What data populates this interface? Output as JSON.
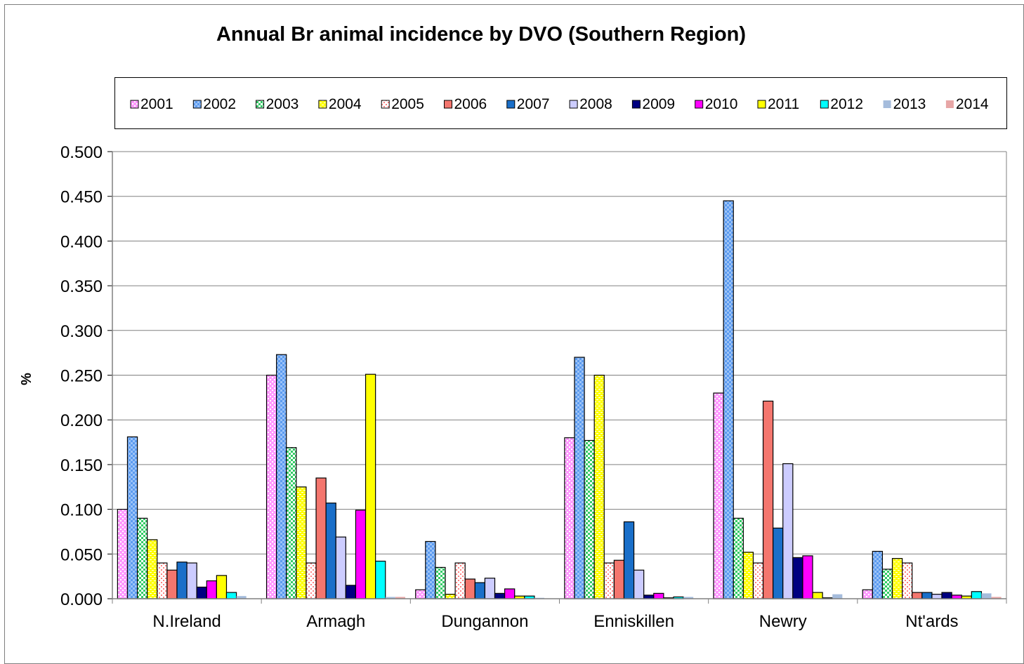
{
  "chart_data": {
    "type": "bar",
    "title": "Annual Br animal incidence by DVO (Southern Region)",
    "ylabel": "%",
    "xlabel": "",
    "ylim": [
      0,
      0.5
    ],
    "yticks": [
      "0.000",
      "0.050",
      "0.100",
      "0.150",
      "0.200",
      "0.250",
      "0.300",
      "0.350",
      "0.400",
      "0.450",
      "0.500"
    ],
    "grid": true,
    "legend_position": "top",
    "categories": [
      "N.Ireland",
      "Armagh",
      "Dungannon",
      "Enniskillen",
      "Newry",
      "Nt'ards"
    ],
    "series": [
      {
        "name": "2001",
        "color": "#ff99ff",
        "pattern": "dots-dense",
        "values": [
          0.1,
          0.25,
          0.01,
          0.18,
          0.23,
          0.01
        ]
      },
      {
        "name": "2002",
        "color": "#5b9bf0",
        "pattern": "checker",
        "values": [
          0.181,
          0.273,
          0.064,
          0.27,
          0.445,
          0.053
        ]
      },
      {
        "name": "2003",
        "color": "#33cc66",
        "pattern": "dots-sparse",
        "values": [
          0.09,
          0.169,
          0.035,
          0.177,
          0.09,
          0.033
        ]
      },
      {
        "name": "2004",
        "color": "#ffff00",
        "pattern": "dashes",
        "values": [
          0.066,
          0.125,
          0.005,
          0.25,
          0.052,
          0.045
        ]
      },
      {
        "name": "2005",
        "color": "#ff8080",
        "pattern": "dots-light",
        "values": [
          0.04,
          0.04,
          0.04,
          0.04,
          0.04,
          0.04
        ]
      },
      {
        "name": "2006",
        "color": "#f4766e",
        "pattern": "solid",
        "values": [
          0.032,
          0.135,
          0.022,
          0.043,
          0.221,
          0.007
        ]
      },
      {
        "name": "2007",
        "color": "#1a6fc9",
        "pattern": "solid",
        "values": [
          0.041,
          0.107,
          0.018,
          0.086,
          0.079,
          0.007
        ]
      },
      {
        "name": "2008",
        "color": "#ccccff",
        "pattern": "solid",
        "values": [
          0.04,
          0.069,
          0.023,
          0.032,
          0.151,
          0.005
        ]
      },
      {
        "name": "2009",
        "color": "#000080",
        "pattern": "solid",
        "values": [
          0.013,
          0.015,
          0.006,
          0.004,
          0.046,
          0.007
        ]
      },
      {
        "name": "2010",
        "color": "#ff00ff",
        "pattern": "solid",
        "values": [
          0.02,
          0.099,
          0.011,
          0.006,
          0.048,
          0.004
        ]
      },
      {
        "name": "2011",
        "color": "#ffff00",
        "pattern": "solid",
        "values": [
          0.026,
          0.251,
          0.003,
          0.001,
          0.007,
          0.003
        ]
      },
      {
        "name": "2012",
        "color": "#00ffff",
        "pattern": "solid",
        "values": [
          0.007,
          0.042,
          0.003,
          0.002,
          0.001,
          0.008
        ]
      },
      {
        "name": "2013",
        "color": "#a5bcdc",
        "pattern": "solid-noborder",
        "values": [
          0.003,
          0.002,
          0.001,
          0.002,
          0.005,
          0.006
        ]
      },
      {
        "name": "2014",
        "color": "#e7a6a6",
        "pattern": "solid-noborder",
        "values": [
          0.0,
          0.002,
          0.0,
          0.0,
          0.0,
          0.002
        ]
      }
    ]
  }
}
